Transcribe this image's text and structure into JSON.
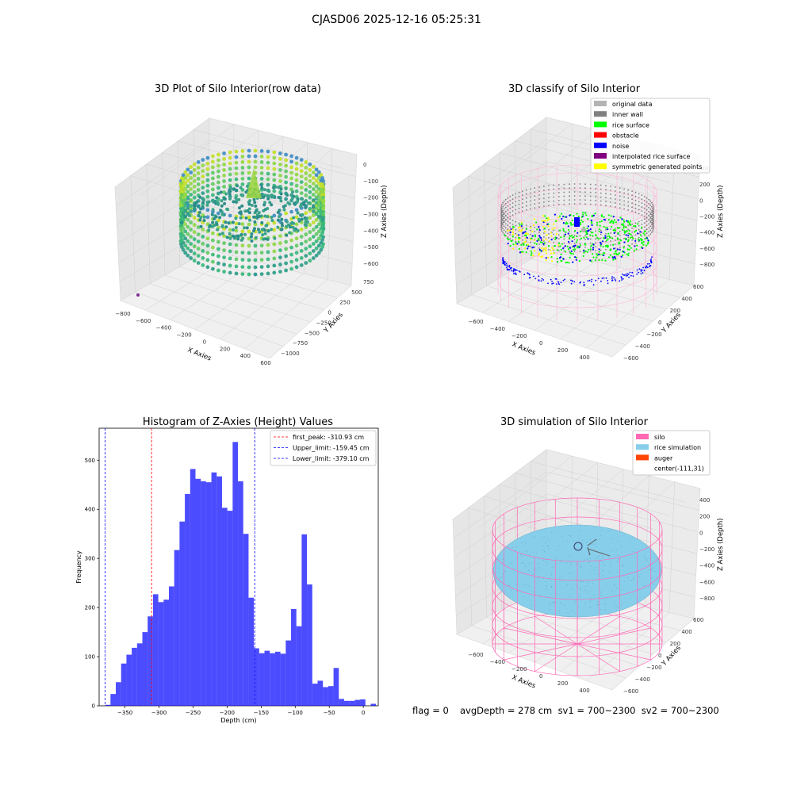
{
  "header": {
    "title": "CJASD06 2025-12-16 05:25:31"
  },
  "panels": {
    "raw": {
      "title": "3D Plot of Silo Interior(row data)",
      "xlabel": "X Axies",
      "ylabel": "Y Axies",
      "zlabel": "Z Axies (Depth)",
      "xticks": [
        "−800",
        "−600",
        "−400",
        "−200",
        "0",
        "200",
        "400",
        "600"
      ],
      "yticks": [
        "750",
        "500",
        "250",
        "0",
        "−250",
        "−500",
        "−750",
        "−1000"
      ],
      "zticks": [
        "0",
        "−100",
        "−200",
        "−300",
        "−400",
        "−500",
        "−600"
      ]
    },
    "classify": {
      "title": "3D classify of Silo Interior",
      "xlabel": "X Axies",
      "ylabel": "Y Axies",
      "zlabel": "Z Axies (Depth)",
      "xticks": [
        "−600",
        "−400",
        "−200",
        "0",
        "200",
        "400"
      ],
      "yticks": [
        "600",
        "400",
        "200",
        "0",
        "−200",
        "−400",
        "−600"
      ],
      "zticks": [
        "400",
        "200",
        "0",
        "−200",
        "−400",
        "−600",
        "−800"
      ],
      "legend": [
        {
          "label": "original data",
          "color": "#b3b3b3"
        },
        {
          "label": "inner wall",
          "color": "#808080"
        },
        {
          "label": "rice surface",
          "color": "#00ff00"
        },
        {
          "label": "obstacle",
          "color": "#ff0000"
        },
        {
          "label": "noise",
          "color": "#0000ff"
        },
        {
          "label": "interpolated rice surface",
          "color": "#800080"
        },
        {
          "label": "symmetric generated points",
          "color": "#ffff00"
        }
      ]
    },
    "simulation": {
      "title": "3D simulation of Silo Interior",
      "xlabel": "X Axies",
      "ylabel": "Y Axies",
      "zlabel": "Z Axies (Depth)",
      "xticks": [
        "−600",
        "−400",
        "−200",
        "0",
        "200",
        "400"
      ],
      "yticks": [
        "600",
        "400",
        "200",
        "0",
        "−200",
        "−400",
        "−600"
      ],
      "zticks": [
        "400",
        "200",
        "0",
        "−200",
        "−400",
        "−600",
        "−800"
      ],
      "legend": [
        {
          "label": "silo",
          "color": "#ff69b4"
        },
        {
          "label": "rice simulation",
          "color": "#87ceeb"
        },
        {
          "label": "auger",
          "color": "#ff4500"
        },
        {
          "label": "center(-111,31)",
          "color": ""
        }
      ]
    }
  },
  "chart_data": {
    "type": "bar",
    "title": "Histogram of Z-Axies (Height) Values",
    "xlabel": "Depth (cm)",
    "ylabel": "Frequency",
    "xlim": [
      -388,
      22
    ],
    "ylim": [
      0,
      565
    ],
    "xticks": [
      -350,
      -300,
      -250,
      -200,
      -150,
      -100,
      -50,
      0
    ],
    "yticks": [
      0,
      100,
      200,
      300,
      400,
      500
    ],
    "bar_color": "#0000ff",
    "bins_start": -379.1,
    "bin_width": 7.8,
    "values": [
      2,
      24,
      48,
      86,
      104,
      118,
      127,
      150,
      182,
      227,
      211,
      216,
      243,
      317,
      375,
      431,
      482,
      462,
      457,
      455,
      475,
      467,
      403,
      397,
      537,
      457,
      350,
      220,
      117,
      107,
      112,
      107,
      110,
      106,
      133,
      197,
      162,
      349,
      247,
      45,
      51,
      38,
      40,
      77,
      14,
      10,
      10,
      12,
      13,
      0,
      4
    ],
    "vlines": [
      {
        "label": "first_peak: -310.93 cm",
        "x": -310.93,
        "color": "#ff0000"
      },
      {
        "label": "Upper_limit: -159.45 cm",
        "x": -159.45,
        "color": "#0000ff"
      },
      {
        "label": "Lower_limit: -379.10 cm",
        "x": -379.1,
        "color": "#0000ff"
      }
    ]
  },
  "footer": {
    "flag": "flag = 0",
    "avg": "avgDepth = 278 cm  sv1 = 700~2300  sv2 = 700~2300"
  }
}
